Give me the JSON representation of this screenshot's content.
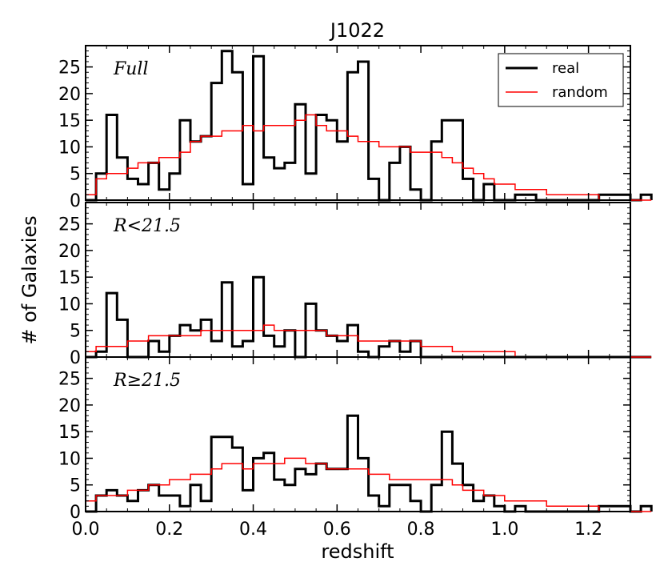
{
  "chart_data": {
    "type": "histogram",
    "title": "J1022",
    "xlabel": "redshift",
    "ylabel": "# of Galaxies",
    "xlim": [
      0.0,
      1.3
    ],
    "ylim": [
      0,
      29
    ],
    "bin_width": 0.025,
    "x_ticks": [
      "0.0",
      "0.2",
      "0.4",
      "0.6",
      "0.8",
      "1.0",
      "1.2"
    ],
    "y_ticks": [
      "0",
      "5",
      "10",
      "15",
      "20",
      "25"
    ],
    "legend": {
      "position": "top-right",
      "entries": [
        {
          "name": "real",
          "color": "#000000"
        },
        {
          "name": "random",
          "color": "#ff0000"
        }
      ]
    },
    "panels": [
      {
        "label": "Full",
        "series": [
          {
            "name": "real",
            "color": "#000000",
            "values": [
              0,
              5,
              16,
              8,
              4,
              3,
              7,
              2,
              5,
              15,
              11,
              12,
              22,
              28,
              24,
              3,
              27,
              8,
              6,
              7,
              18,
              5,
              16,
              15,
              11,
              24,
              26,
              4,
              0,
              7,
              10,
              2,
              0,
              11,
              15,
              15,
              4,
              0,
              3,
              0,
              0,
              1,
              1,
              0,
              0,
              0,
              0,
              0,
              0,
              1,
              1,
              1,
              0,
              1
            ]
          },
          {
            "name": "random",
            "color": "#ff0000",
            "values": [
              1,
              4,
              5,
              5,
              6,
              7,
              7,
              8,
              8,
              9,
              11,
              12,
              12,
              13,
              13,
              14,
              13,
              14,
              14,
              14,
              15,
              16,
              14,
              13,
              13,
              12,
              11,
              11,
              10,
              10,
              10,
              9,
              9,
              9,
              8,
              7,
              6,
              5,
              4,
              3,
              3,
              2,
              2,
              2,
              1,
              1,
              1,
              1,
              1,
              0,
              0,
              0,
              0,
              0
            ]
          }
        ]
      },
      {
        "label": "R<21.5",
        "series": [
          {
            "name": "real",
            "color": "#000000",
            "values": [
              0,
              1,
              12,
              7,
              0,
              0,
              3,
              1,
              4,
              6,
              5,
              7,
              3,
              14,
              2,
              3,
              15,
              4,
              2,
              5,
              0,
              10,
              5,
              4,
              3,
              6,
              1,
              0,
              2,
              3,
              1,
              3,
              0,
              0,
              0,
              0,
              0,
              0,
              0,
              0,
              0,
              0,
              0,
              0,
              0,
              0,
              0,
              0,
              0,
              0,
              0,
              0,
              0,
              0
            ]
          },
          {
            "name": "random",
            "color": "#ff0000",
            "values": [
              1,
              2,
              2,
              2,
              3,
              3,
              4,
              4,
              4,
              4,
              4,
              5,
              5,
              5,
              5,
              5,
              5,
              6,
              5,
              5,
              5,
              5,
              5,
              4,
              4,
              4,
              3,
              3,
              3,
              3,
              3,
              3,
              2,
              2,
              2,
              1,
              1,
              1,
              1,
              1,
              1,
              0,
              0,
              0,
              0,
              0,
              0,
              0,
              0,
              0,
              0,
              0,
              0,
              0
            ]
          }
        ]
      },
      {
        "label": "R≥21.5",
        "series": [
          {
            "name": "real",
            "color": "#000000",
            "values": [
              0,
              3,
              4,
              3,
              2,
              4,
              5,
              3,
              3,
              1,
              5,
              2,
              14,
              14,
              12,
              4,
              10,
              11,
              6,
              5,
              8,
              7,
              9,
              8,
              8,
              18,
              10,
              3,
              1,
              5,
              5,
              2,
              0,
              5,
              15,
              9,
              5,
              2,
              3,
              1,
              0,
              1,
              0,
              0,
              0,
              0,
              0,
              0,
              0,
              1,
              1,
              1,
              0,
              1
            ]
          },
          {
            "name": "random",
            "color": "#ff0000",
            "values": [
              2,
              3,
              3,
              3,
              4,
              4,
              5,
              5,
              6,
              6,
              7,
              7,
              8,
              9,
              9,
              8,
              9,
              9,
              9,
              10,
              10,
              9,
              9,
              8,
              8,
              8,
              8,
              7,
              7,
              6,
              6,
              6,
              6,
              6,
              6,
              5,
              4,
              4,
              3,
              3,
              2,
              2,
              2,
              2,
              1,
              1,
              1,
              1,
              1,
              0,
              0,
              0,
              0,
              0
            ]
          }
        ]
      }
    ]
  }
}
